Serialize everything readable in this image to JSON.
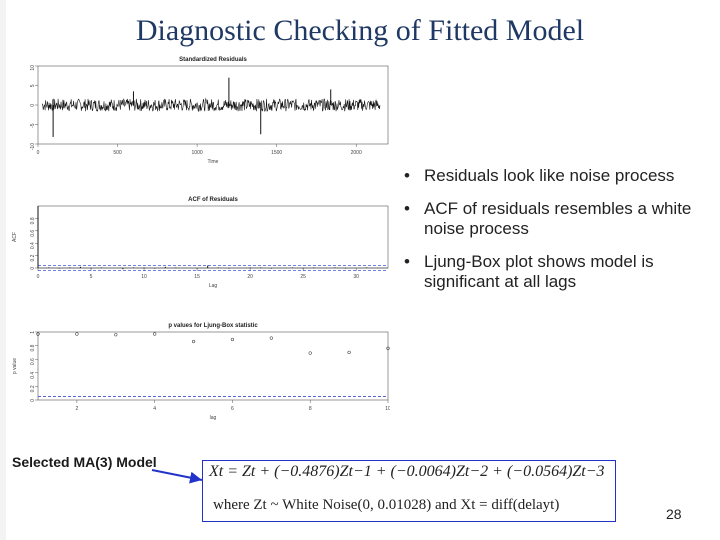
{
  "slide": {
    "title": "Diagnostic Checking of Fitted Model",
    "page_number": "28",
    "bullets": [
      "Residuals look like noise process",
      "ACF of residuals resembles a white noise process",
      "Ljung-Box plot shows model is significant at all lags"
    ],
    "model_label": "Selected MA(3) Model",
    "equation_line1": "Xt = Zt + (−0.4876)Zt−1 + (−0.0064)Zt−2 + (−0.0564)Zt−3",
    "equation_line2": "where Zt ~ White Noise(0, 0.01028) and Xt = diff(delayt)"
  },
  "chart_data": [
    {
      "type": "line",
      "title": "Standardized Residuals",
      "xlabel": "Time",
      "ylabel": "",
      "xlim": [
        0,
        2200
      ],
      "ylim": [
        -10,
        10
      ],
      "x_ticks": [
        0,
        500,
        1000,
        1500,
        2000
      ],
      "y_ticks": [
        -10,
        -5,
        0,
        5,
        10
      ],
      "spikes": [
        {
          "x": 95,
          "y": -8.2
        },
        {
          "x": 600,
          "y": 3.5
        },
        {
          "x": 1200,
          "y": 7
        },
        {
          "x": 1400,
          "y": -7.5
        },
        {
          "x": 1840,
          "y": 4
        }
      ]
    },
    {
      "type": "bar",
      "title": "ACF of Residuals",
      "xlabel": "Lag",
      "ylabel": "ACF",
      "xlim": [
        0,
        33
      ],
      "ylim": [
        0,
        1
      ],
      "x_ticks": [
        0,
        5,
        10,
        15,
        20,
        25,
        30
      ],
      "y_ticks": [
        0,
        0.2,
        0.4,
        0.6,
        0.8
      ],
      "lags": [
        0,
        1,
        2,
        3,
        4,
        5,
        6,
        7,
        8,
        9,
        10,
        11,
        12,
        13,
        14,
        15,
        16,
        17,
        18,
        19,
        20,
        21,
        22,
        23,
        24,
        25,
        26,
        27,
        28,
        29,
        30,
        31,
        32
      ],
      "values": [
        1.0,
        0.01,
        -0.01,
        0.01,
        0.02,
        -0.01,
        0.01,
        0.0,
        -0.02,
        0.01,
        0.01,
        -0.01,
        0.02,
        0.01,
        0.0,
        -0.01,
        0.04,
        0.01,
        -0.01,
        0.0,
        0.01,
        0.01,
        -0.01,
        0.0,
        0.01,
        -0.01,
        0.01,
        0.0,
        0.01,
        -0.01,
        0.0,
        0.01,
        0.0
      ],
      "conf_bound": 0.043
    },
    {
      "type": "scatter",
      "title": "p values for Ljung-Box statistic",
      "xlabel": "lag",
      "ylabel": "p value",
      "xlim": [
        1,
        10
      ],
      "ylim": [
        0,
        1
      ],
      "x_ticks": [
        2,
        4,
        6,
        8,
        10
      ],
      "y_ticks": [
        0,
        0.2,
        0.4,
        0.6,
        0.8,
        1.0
      ],
      "x": [
        1,
        2,
        3,
        4,
        5,
        6,
        7,
        8,
        9,
        10
      ],
      "values": [
        0.97,
        0.97,
        0.96,
        0.97,
        0.86,
        0.89,
        0.91,
        0.69,
        0.7,
        0.76
      ],
      "ref_line": 0.05
    }
  ]
}
